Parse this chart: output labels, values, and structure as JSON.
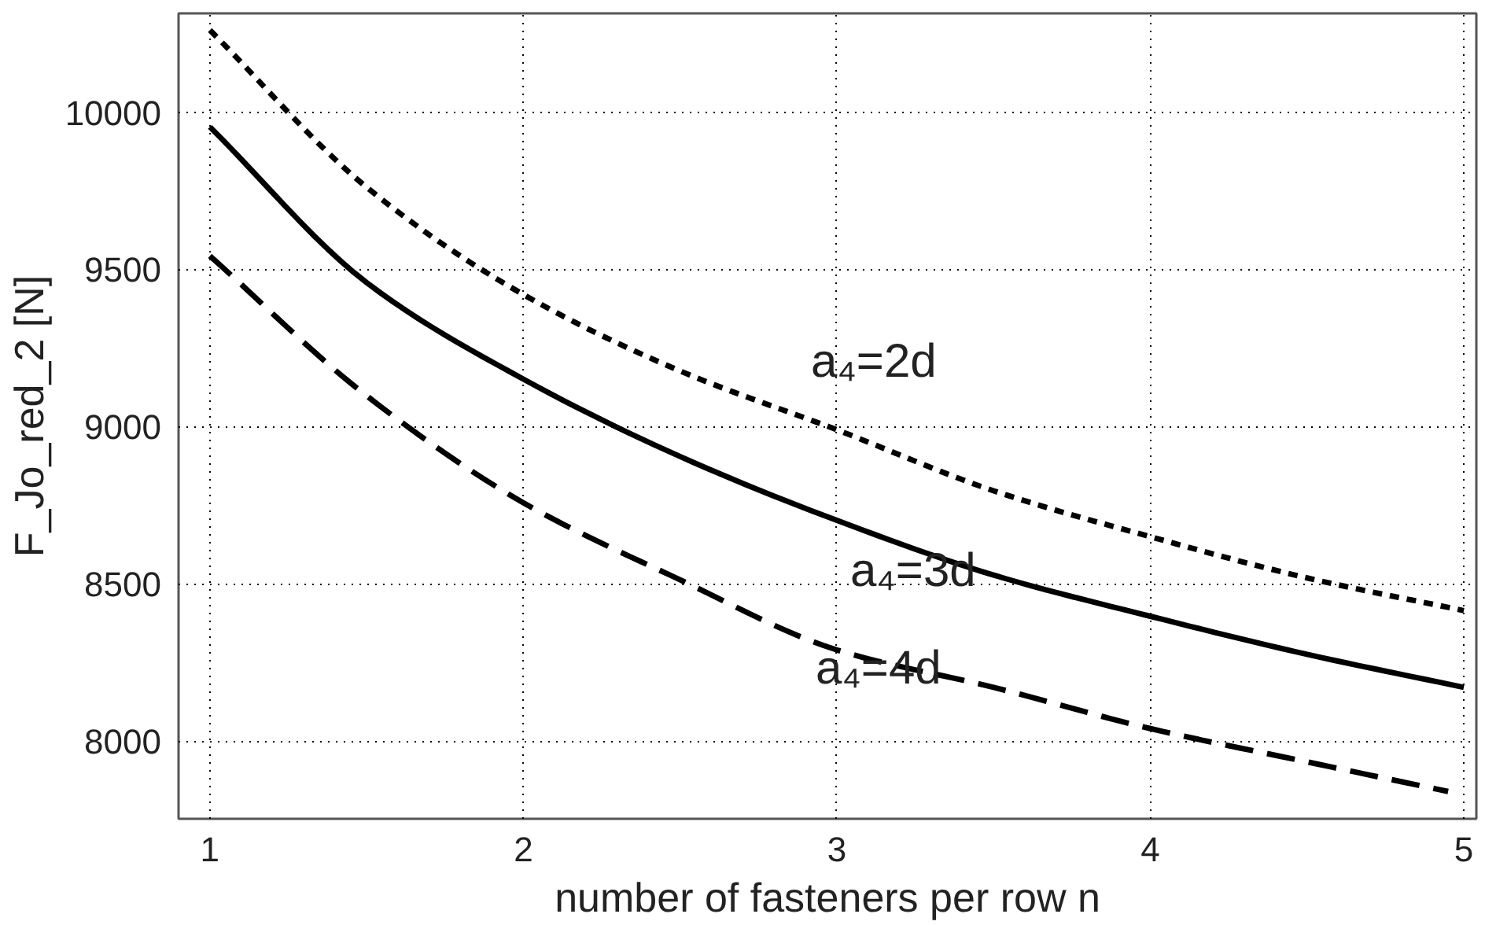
{
  "chart_data": {
    "type": "line",
    "xlabel": "number of fasteners per row n",
    "ylabel": "F_Jo_red_2 [N]",
    "x": [
      1,
      1.5,
      2,
      2.5,
      3,
      3.5,
      4,
      4.5,
      5
    ],
    "series": [
      {
        "color": "#000000",
        "line_style": "dotted",
        "values": [
          10261,
          9761,
          9420,
          9177,
          8990,
          8796,
          8650,
          8519,
          8415
        ]
      },
      {
        "color": "#000000",
        "line_style": "solid",
        "values": [
          9953,
          9458,
          9151,
          8905,
          8702,
          8528,
          8397,
          8276,
          8171
        ]
      },
      {
        "color": "#000000",
        "line_style": "dashed",
        "x": [
          1,
          1.5,
          2,
          2.5,
          3,
          3.5,
          4,
          4.5,
          4.95
        ],
        "values": [
          9543,
          9098,
          8758,
          8513,
          8290,
          8171,
          8040,
          7934,
          7840
        ]
      }
    ],
    "annotations": [
      "a₄=2d",
      "a₄=3d",
      "a₄=4d"
    ],
    "xlim": [
      0.9,
      5.04
    ],
    "ylim": [
      7753,
      10314
    ],
    "xticks": [
      1,
      2,
      3,
      4,
      5
    ],
    "yticks": [
      8000,
      8500,
      9000,
      9500,
      10000
    ],
    "grid": true,
    "marker": "none"
  }
}
